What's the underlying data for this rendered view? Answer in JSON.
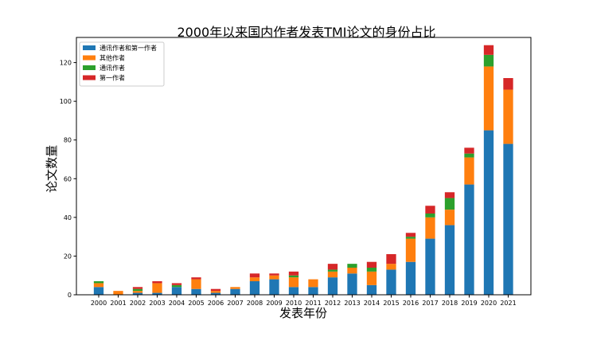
{
  "chart_data": {
    "type": "bar",
    "stacked": true,
    "title": "2000年以来国内作者发表TMI论文的身份占比",
    "xlabel": "发表年份",
    "ylabel": "论文数量",
    "ylim": [
      0,
      133
    ],
    "yticks": [
      0,
      20,
      40,
      60,
      80,
      100,
      120
    ],
    "legend_position": "top-left",
    "categories": [
      "2000",
      "2001",
      "2002",
      "2003",
      "2004",
      "2005",
      "2006",
      "2007",
      "2008",
      "2009",
      "2010",
      "2011",
      "2012",
      "2013",
      "2014",
      "2015",
      "2016",
      "2017",
      "2018",
      "2019",
      "2020",
      "2021"
    ],
    "series": [
      {
        "name": "通讯作者和第一作者",
        "color": "#1f77b4",
        "values": [
          4,
          0,
          1,
          1,
          4,
          3,
          1,
          3,
          7,
          8,
          4,
          4,
          9,
          11,
          5,
          13,
          17,
          29,
          36,
          57,
          85,
          78
        ]
      },
      {
        "name": "其他作者",
        "color": "#ff7f0e",
        "values": [
          2,
          2,
          1,
          5,
          0,
          5,
          1,
          1,
          2,
          2,
          5,
          4,
          3,
          3,
          7,
          3,
          12,
          11,
          8,
          14,
          33,
          28
        ]
      },
      {
        "name": "通讯作者",
        "color": "#2ca02c",
        "values": [
          1,
          0,
          1,
          0,
          1,
          0,
          0,
          0,
          0,
          0,
          1,
          0,
          1,
          2,
          2,
          0,
          1,
          2,
          6,
          2,
          6,
          0
        ]
      },
      {
        "name": "第一作者",
        "color": "#d62728",
        "values": [
          0,
          0,
          1,
          1,
          1,
          1,
          1,
          0,
          2,
          1,
          2,
          0,
          3,
          0,
          3,
          5,
          2,
          4,
          3,
          3,
          5,
          6
        ]
      }
    ]
  }
}
